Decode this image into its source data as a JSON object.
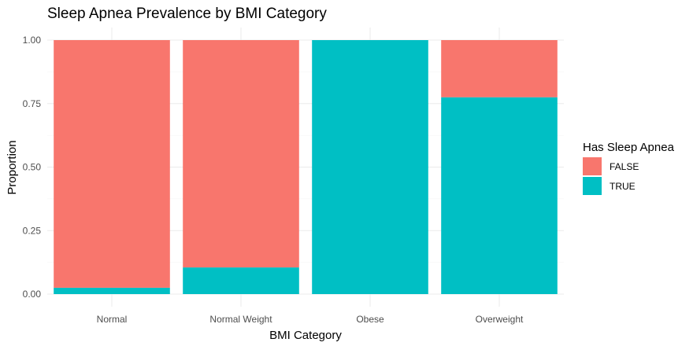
{
  "chart_data": {
    "type": "bar",
    "stacked": true,
    "title": "Sleep Apnea Prevalence by BMI Category",
    "xlabel": "BMI Category",
    "ylabel": "Proportion",
    "categories": [
      "Normal",
      "Normal Weight",
      "Obese",
      "Overweight"
    ],
    "series": [
      {
        "name": "FALSE",
        "color": "#F8766D",
        "values": [
          0.975,
          0.895,
          0.0,
          0.225
        ]
      },
      {
        "name": "TRUE",
        "color": "#00BFC4",
        "values": [
          0.025,
          0.105,
          1.0,
          0.775
        ]
      }
    ],
    "ylim": [
      0,
      1
    ],
    "yticks": [
      "0.00",
      "0.25",
      "0.50",
      "0.75",
      "1.00"
    ],
    "grid": true,
    "legend": {
      "title": "Has Sleep Apnea",
      "position": "right"
    }
  }
}
